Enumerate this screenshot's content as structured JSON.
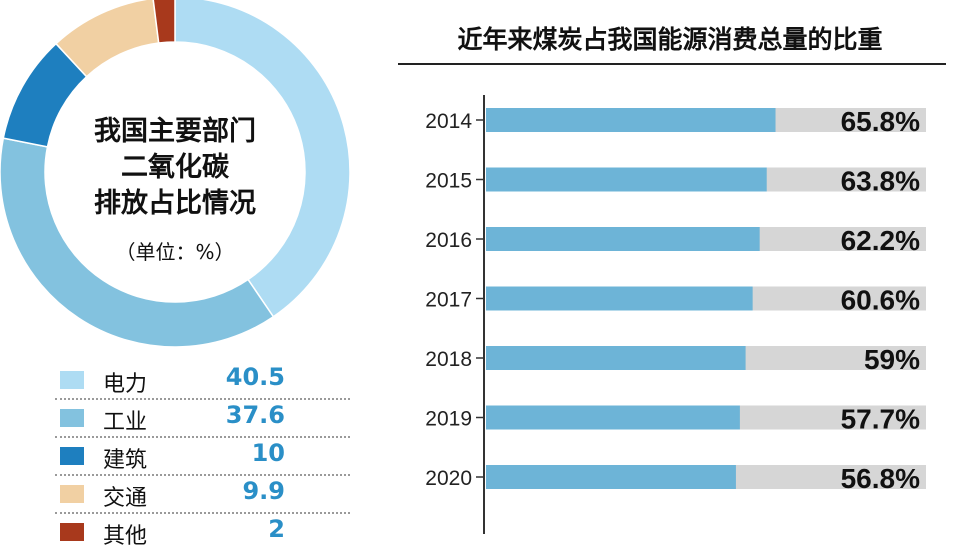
{
  "donut": {
    "caption": [
      "我国主要部门",
      "二氧化碳",
      "排放占比情况"
    ],
    "unit_label": "（单位：%）",
    "chart_data": {
      "type": "pie",
      "title": "我国主要部门二氧化碳排放占比情况",
      "unit": "%",
      "categories": [
        "电力",
        "工业",
        "建筑",
        "交通",
        "其他"
      ],
      "values": [
        40.5,
        37.6,
        10,
        9.9,
        2
      ],
      "value_labels": [
        "40.5",
        "37.6",
        "10",
        "9.9",
        "2"
      ],
      "colors": [
        "#aedcf3",
        "#83c2df",
        "#1e7fbf",
        "#f1d0a3",
        "#a8391c"
      ]
    }
  },
  "bars": {
    "title": "近年来煤炭占我国能源消费总量的比重",
    "chart_data": {
      "type": "bar",
      "orientation": "horizontal",
      "title": "近年来煤炭占我国能源消费总量的比重",
      "categories": [
        "2014",
        "2015",
        "2016",
        "2017",
        "2018",
        "2019",
        "2020"
      ],
      "values": [
        65.8,
        63.8,
        62.2,
        60.6,
        59,
        57.7,
        56.8
      ],
      "value_labels": [
        "65.8%",
        "63.8%",
        "62.2%",
        "60.6%",
        "59%",
        "57.7%",
        "56.8%"
      ],
      "xlim": [
        0,
        100
      ],
      "bar_color": "#6db4d7",
      "track_color": "#d6d6d6"
    }
  }
}
